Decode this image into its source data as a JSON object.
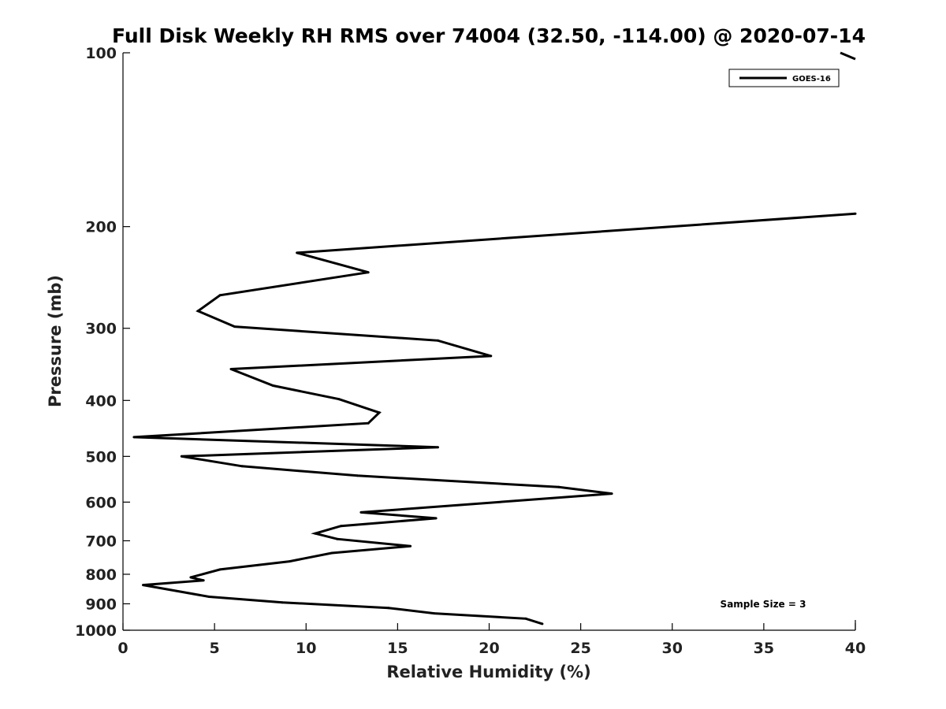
{
  "chart_data": {
    "type": "line",
    "title": "Full Disk Weekly RH RMS over 74004 (32.50, -114.00) @ 2020-07-14",
    "xlabel": "Relative Humidity (%)",
    "ylabel": "Pressure (mb)",
    "xlim": [
      0,
      40
    ],
    "ylim": [
      100,
      1000
    ],
    "y_scale": "log",
    "y_reversed": true,
    "x_ticks": [
      "0",
      "5",
      "10",
      "15",
      "20",
      "25",
      "30",
      "35",
      "40"
    ],
    "y_ticks": [
      "100",
      "200",
      "300",
      "400",
      "500",
      "600",
      "700",
      "800",
      "900",
      "1000"
    ],
    "grid": false,
    "legend_position": "top-right",
    "annotation": "Sample Size = 3",
    "series": [
      {
        "name": "GOES-16",
        "color": "#000000",
        "points": [
          {
            "x": 22.9,
            "p": 975
          },
          {
            "x": 22.0,
            "p": 955
          },
          {
            "x": 17.0,
            "p": 935
          },
          {
            "x": 14.5,
            "p": 915
          },
          {
            "x": 8.7,
            "p": 895
          },
          {
            "x": 4.7,
            "p": 875
          },
          {
            "x": 1.1,
            "p": 835
          },
          {
            "x": 4.4,
            "p": 820
          },
          {
            "x": 3.7,
            "p": 810
          },
          {
            "x": 5.3,
            "p": 785
          },
          {
            "x": 9.1,
            "p": 760
          },
          {
            "x": 11.4,
            "p": 735
          },
          {
            "x": 15.7,
            "p": 715
          },
          {
            "x": 11.7,
            "p": 695
          },
          {
            "x": 10.5,
            "p": 680
          },
          {
            "x": 11.9,
            "p": 660
          },
          {
            "x": 17.1,
            "p": 640
          },
          {
            "x": 13.0,
            "p": 625
          },
          {
            "x": 26.7,
            "p": 580
          },
          {
            "x": 23.8,
            "p": 565
          },
          {
            "x": 12.8,
            "p": 540
          },
          {
            "x": 6.5,
            "p": 520
          },
          {
            "x": 3.2,
            "p": 500
          },
          {
            "x": 17.2,
            "p": 482
          },
          {
            "x": 0.6,
            "p": 463
          },
          {
            "x": 13.4,
            "p": 438
          },
          {
            "x": 14.0,
            "p": 420
          },
          {
            "x": 11.8,
            "p": 398
          },
          {
            "x": 8.2,
            "p": 377
          },
          {
            "x": 5.9,
            "p": 353
          },
          {
            "x": 20.1,
            "p": 335
          },
          {
            "x": 17.2,
            "p": 315
          },
          {
            "x": 6.1,
            "p": 298
          },
          {
            "x": 4.1,
            "p": 280
          },
          {
            "x": 5.3,
            "p": 263
          },
          {
            "x": 13.4,
            "p": 240
          },
          {
            "x": 9.5,
            "p": 222
          },
          {
            "x": 40.0,
            "p": 190
          }
        ]
      }
    ]
  }
}
